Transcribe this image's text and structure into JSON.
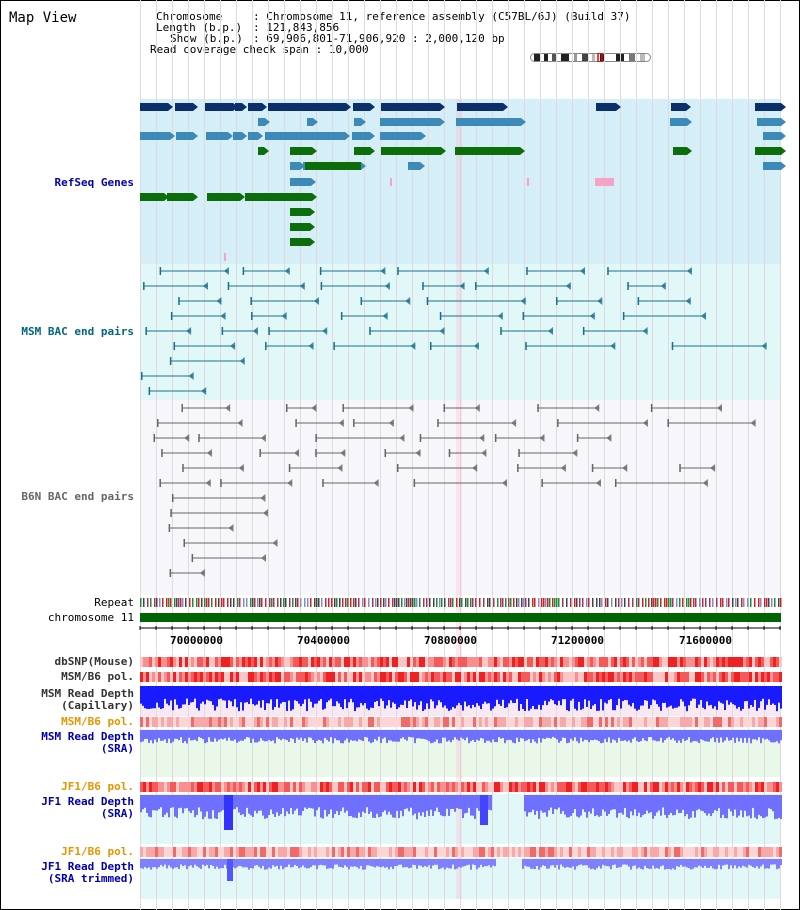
{
  "window": {
    "title": "Map View"
  },
  "info": {
    "chromosome_key": "Chromosome",
    "chromosome_value": "Chromosome 11, reference assembly (C57BL/6J) (Build 37)",
    "length_key": "Length (b.p.)",
    "length_value": "121,843,856",
    "show_key": "Show (b.p.)",
    "show_value": "69,906,801-71,906,920 : 2,000,120 bp",
    "coverage_key": "Read coverage check span",
    "coverage_value": "10,000"
  },
  "tracks": {
    "refseq": "RefSeq Genes",
    "msm_bac": "MSM BAC end pairs",
    "b6n_bac": "B6N BAC end pairs",
    "repeat": "Repeat",
    "chromosome": "chromosome 11",
    "dbsnp": "dbSNP(Mouse)",
    "msm_pol": "MSM/B6 pol.",
    "msm_depth_cap_1": "MSM Read Depth",
    "msm_depth_cap_2": "(Capillary)",
    "msm_pol2": "MSM/B6 pol.",
    "msm_depth_sra_1": "MSM Read Depth",
    "msm_depth_sra_2": "(SRA)",
    "jf1_pol": "JF1/B6 pol.",
    "jf1_depth_1": "JF1 Read Depth",
    "jf1_depth_2": "(SRA)",
    "jf1_pol2": "JF1/B6 pol.",
    "jf1_trim_1": "JF1 Read Depth",
    "jf1_trim_2": "(SRA trimmed)"
  },
  "axis": {
    "ticks": [
      "70000000",
      "70400000",
      "70800000",
      "71200000",
      "71600000"
    ]
  },
  "colors": {
    "refseq_dark": "#0a2f6b",
    "refseq_mid": "#3d8ab8",
    "refseq_green": "#0b6e0b",
    "refseq_pink": "#f5a3c7",
    "msm_label": "#006680",
    "b6n_label": "#666666",
    "blue_label": "#0000aa",
    "orange_label": "#e69500",
    "depth_blue": "#1a1aff",
    "depth_light": "#7070ff"
  }
}
